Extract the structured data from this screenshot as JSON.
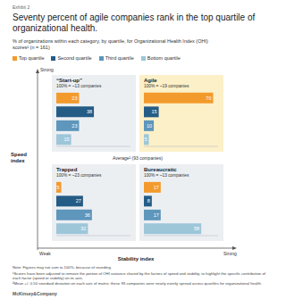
{
  "exhibit": "Exhibit 2",
  "title": "Seventy percent of agile companies rank in the top quartile of organizational health.",
  "subtitle": "% of organizations within each category, by quartile, for Organizational Health Index (OHI) scores¹ (n = 161)",
  "matrix": {
    "y_label": "Speed index",
    "y_high": "Strong",
    "x_label": "Stability index",
    "x_low": "Weak",
    "x_high": "Strong",
    "center_label": "Average² (93 companies)"
  },
  "chart_data": [
    {
      "type": "bar",
      "orientation": "horizontal",
      "title": "“Start-up”",
      "subtitle": "100% = ~13 companies",
      "categories": [
        "Top quartile",
        "Second quartile",
        "Third quartile",
        "Bottom quartile"
      ],
      "values": [
        23,
        38,
        23,
        15
      ],
      "colors": [
        "#f39a2c",
        "#245c86",
        "#5e96bc",
        "#9dc6d9"
      ],
      "xlim": [
        0,
        75
      ],
      "tick_labels": false,
      "data_labels": true
    },
    {
      "type": "bar",
      "orientation": "horizontal",
      "title": "Agile",
      "subtitle": "100% = ~19 companies",
      "categories": [
        "Top quartile",
        "Second quartile",
        "Third quartile",
        "Bottom quartile"
      ],
      "values": [
        70,
        15,
        10,
        5
      ],
      "colors": [
        "#f39a2c",
        "#245c86",
        "#5e96bc",
        "#9dc6d9"
      ],
      "xlim": [
        0,
        75
      ],
      "tick_labels": false,
      "data_labels": true
    },
    {
      "type": "bar",
      "orientation": "horizontal",
      "title": "Trapped",
      "subtitle": "100% = ~23 companies",
      "categories": [
        "Top quartile",
        "Second quartile",
        "Third quartile",
        "Bottom quartile"
      ],
      "values": [
        5,
        27,
        36,
        32
      ],
      "colors": [
        "#f39a2c",
        "#245c86",
        "#5e96bc",
        "#9dc6d9"
      ],
      "xlim": [
        0,
        75
      ],
      "tick_labels": false,
      "data_labels": true
    },
    {
      "type": "bar",
      "orientation": "horizontal",
      "title": "Bureaucratic",
      "subtitle": "100% = ~13 companies",
      "categories": [
        "Top quartile",
        "Second quartile",
        "Third quartile",
        "Bottom quartile"
      ],
      "values": [
        17,
        8,
        17,
        58
      ],
      "colors": [
        "#f39a2c",
        "#245c86",
        "#5e96bc",
        "#9dc6d9"
      ],
      "xlim": [
        0,
        75
      ],
      "tick_labels": false,
      "data_labels": true
    }
  ],
  "notes": [
    "Note: Figures may not sum to 100%, because of rounding.",
    "¹Scores have been adjusted to remove the portion of OHI variance shared by the factors of speed and stability, to highlight the specific contribution of each factor (speed or stability) on its axis.",
    "²Mean +/- 0.50 standard deviation on each axis of matrix; these 93 companies were nearly evenly spread across quartiles for organizational health."
  ],
  "source": "McKinsey&Company"
}
